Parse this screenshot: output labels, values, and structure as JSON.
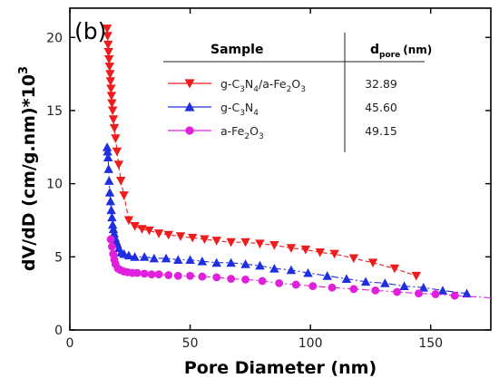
{
  "chart_data": {
    "type": "scatter",
    "panel_label": "(b)",
    "xlabel": "Pore Diameter (nm)",
    "ylabel": "dV/dD (cm/g.nm)*10",
    "ylabel_exponent": "3",
    "xlim": [
      0,
      175
    ],
    "ylim": [
      0,
      22
    ],
    "xticks": [
      "0",
      "50",
      "100",
      "150"
    ],
    "yticks": [
      "0",
      "5",
      "10",
      "15",
      "20"
    ],
    "grid": false,
    "legend_position": "top-right",
    "table": {
      "sample_header": "Sample",
      "dpore_header_main": "d",
      "dpore_header_sub": "pore",
      "dpore_header_unit": "(nm)"
    },
    "series": [
      {
        "name": "g-C3N4/a-Fe2O3",
        "legend_parts": [
          {
            "t": "g-C"
          },
          {
            "t": "3",
            "sub": true
          },
          {
            "t": "N"
          },
          {
            "t": "4",
            "sub": true
          },
          {
            "t": "/a-Fe"
          },
          {
            "t": "2",
            "sub": true
          },
          {
            "t": "O"
          },
          {
            "t": "3",
            "sub": true
          }
        ],
        "dpore": "32.89",
        "color": "#ee1c1c",
        "marker": "triangle-down",
        "x": [
          15.5,
          15.7,
          15.9,
          16.1,
          16.3,
          16.5,
          16.7,
          16.9,
          17.1,
          17.3,
          17.5,
          17.8,
          18.1,
          18.5,
          19.0,
          19.6,
          20.3,
          21.2,
          22.5,
          24.5,
          27,
          30,
          33,
          37,
          41,
          46,
          51,
          56,
          61,
          67,
          73,
          79,
          85,
          92,
          98,
          104,
          110,
          118,
          126,
          135,
          144
        ],
        "y": [
          20.6,
          20.1,
          19.5,
          19.0,
          18.5,
          18.0,
          17.5,
          17.0,
          16.5,
          16.0,
          15.5,
          15.0,
          14.4,
          13.8,
          13.1,
          12.2,
          11.3,
          10.2,
          9.2,
          7.5,
          7.1,
          6.9,
          6.8,
          6.6,
          6.5,
          6.4,
          6.3,
          6.2,
          6.1,
          6.0,
          6.0,
          5.9,
          5.8,
          5.6,
          5.5,
          5.3,
          5.2,
          4.9,
          4.6,
          4.2,
          3.7
        ]
      },
      {
        "name": "g-C3N4",
        "legend_parts": [
          {
            "t": "g-C"
          },
          {
            "t": "3",
            "sub": true
          },
          {
            "t": "N"
          },
          {
            "t": "4",
            "sub": true
          }
        ],
        "dpore": "45.60",
        "color": "#1f2fe0",
        "marker": "triangle-up",
        "x": [
          15.5,
          15.7,
          15.9,
          16.1,
          16.3,
          16.6,
          16.9,
          17.2,
          17.5,
          17.8,
          18.1,
          18.4,
          18.8,
          19.2,
          19.7,
          20.4,
          21.3,
          22.5,
          24.5,
          27,
          31,
          35,
          40,
          45,
          50,
          55,
          61,
          67,
          73,
          79,
          85,
          92,
          99,
          107,
          115,
          123,
          131,
          139,
          147,
          155,
          165
        ],
        "y": [
          12.5,
          12.2,
          11.8,
          11.0,
          10.2,
          9.4,
          8.8,
          8.2,
          7.7,
          7.2,
          6.9,
          6.6,
          6.3,
          6.1,
          5.9,
          5.6,
          5.3,
          5.2,
          5.1,
          5.0,
          5.0,
          4.9,
          4.9,
          4.8,
          4.8,
          4.7,
          4.6,
          4.6,
          4.5,
          4.4,
          4.2,
          4.1,
          3.9,
          3.7,
          3.5,
          3.3,
          3.2,
          3.0,
          2.9,
          2.7,
          2.5
        ]
      },
      {
        "name": "a-Fe2O3",
        "legend_parts": [
          {
            "t": "a-Fe"
          },
          {
            "t": "2",
            "sub": true
          },
          {
            "t": "O"
          },
          {
            "t": "3",
            "sub": true
          }
        ],
        "dpore": "49.15",
        "color": "#e020dd",
        "marker": "circle",
        "x": [
          17,
          17.5,
          18,
          18.5,
          19,
          20,
          21,
          22.5,
          24,
          26,
          28,
          31,
          34,
          37,
          41,
          45,
          50,
          55,
          61,
          67,
          73,
          80,
          87,
          94,
          101,
          109,
          118,
          127,
          136,
          145,
          152,
          160
        ],
        "y": [
          6.2,
          5.7,
          5.2,
          4.8,
          4.5,
          4.2,
          4.1,
          4.0,
          3.95,
          3.9,
          3.9,
          3.85,
          3.8,
          3.8,
          3.75,
          3.7,
          3.7,
          3.65,
          3.6,
          3.5,
          3.45,
          3.35,
          3.2,
          3.1,
          3.0,
          2.9,
          2.8,
          2.7,
          2.6,
          2.5,
          2.45,
          2.35
        ]
      }
    ]
  }
}
